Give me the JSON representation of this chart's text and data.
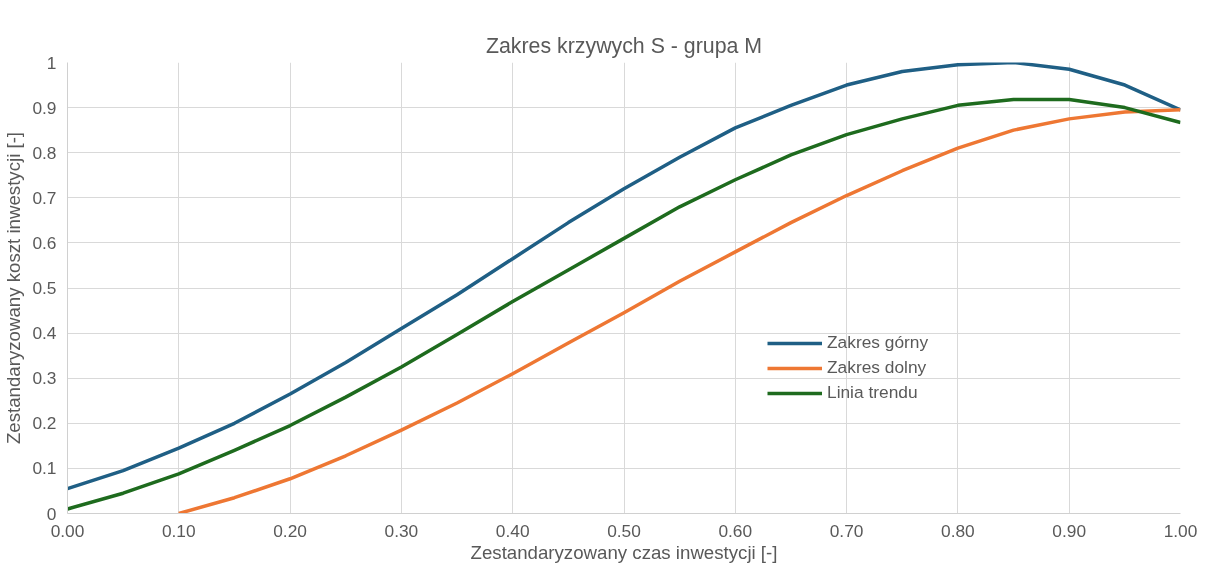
{
  "chart_data": {
    "type": "line",
    "title": "Zakres krzywych S - grupa M",
    "xlabel": "Zestandaryzowany czas inwestycji [-]",
    "ylabel": "Zestandaryzowany koszt inwestycji [-]",
    "x": [
      0,
      0.05,
      0.1,
      0.15,
      0.2,
      0.25,
      0.3,
      0.35,
      0.4,
      0.45,
      0.5,
      0.55,
      0.6,
      0.65,
      0.7,
      0.75,
      0.8,
      0.85,
      0.9,
      0.95,
      1
    ],
    "series": [
      {
        "name": "Zakres górny",
        "color": "#1f5f85",
        "values": [
          0.055,
          0.095,
          0.145,
          0.2,
          0.265,
          0.335,
          0.41,
          0.485,
          0.565,
          0.645,
          0.72,
          0.79,
          0.855,
          0.905,
          0.95,
          0.98,
          0.995,
          1.0,
          0.985,
          0.95,
          0.895
        ]
      },
      {
        "name": "Zakres dolny",
        "color": "#ee7733",
        "x": [
          0.1,
          0.15,
          0.2,
          0.25,
          0.3,
          0.35,
          0.4,
          0.45,
          0.5,
          0.55,
          0.6,
          0.65,
          0.7,
          0.75,
          0.8,
          0.85,
          0.9,
          0.95,
          1
        ],
        "values": [
          0,
          0.035,
          0.077,
          0.128,
          0.185,
          0.245,
          0.31,
          0.378,
          0.445,
          0.515,
          0.58,
          0.645,
          0.705,
          0.76,
          0.81,
          0.85,
          0.875,
          0.89,
          0.895
        ]
      },
      {
        "name": "Linia trendu",
        "color": "#1e6b1e",
        "values": [
          0.01,
          0.045,
          0.088,
          0.14,
          0.195,
          0.258,
          0.325,
          0.397,
          0.47,
          0.54,
          0.61,
          0.68,
          0.74,
          0.795,
          0.84,
          0.875,
          0.905,
          0.918,
          0.918,
          0.9,
          0.867
        ]
      }
    ],
    "xlim": [
      0,
      1
    ],
    "ylim": [
      0,
      1
    ],
    "xticks": [
      {
        "value": 0,
        "label": "0.00"
      },
      {
        "value": 0.1,
        "label": "0.10"
      },
      {
        "value": 0.2,
        "label": "0.20"
      },
      {
        "value": 0.3,
        "label": "0.30"
      },
      {
        "value": 0.4,
        "label": "0.40"
      },
      {
        "value": 0.5,
        "label": "0.50"
      },
      {
        "value": 0.6,
        "label": "0.60"
      },
      {
        "value": 0.7,
        "label": "0.70"
      },
      {
        "value": 0.8,
        "label": "0.80"
      },
      {
        "value": 0.9,
        "label": "0.90"
      },
      {
        "value": 1,
        "label": "1.00"
      }
    ],
    "yticks": [
      0,
      0.1,
      0.2,
      0.3,
      0.4,
      0.5,
      0.6,
      0.7,
      0.8,
      0.9,
      1
    ],
    "grid": true,
    "legend": "right",
    "marker": "none",
    "line_style": "solid"
  }
}
